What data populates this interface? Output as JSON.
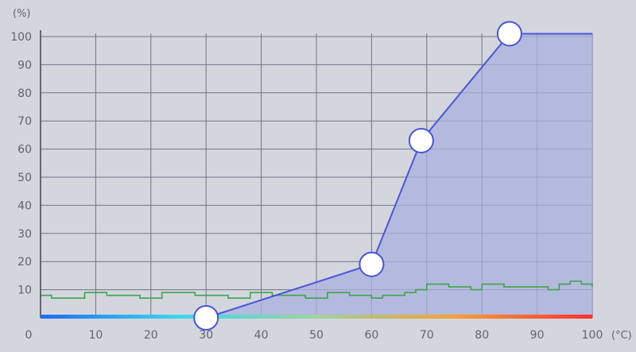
{
  "chart_data": {
    "type": "line",
    "y_unit": "(%)",
    "x_unit": "(°C)",
    "origin_label": "0",
    "xlim": [
      0,
      100
    ],
    "ylim": [
      0,
      100
    ],
    "x_ticks": [
      10,
      20,
      30,
      40,
      50,
      60,
      70,
      80,
      90,
      100
    ],
    "y_ticks": [
      10,
      20,
      30,
      40,
      50,
      60,
      70,
      80,
      90,
      100
    ],
    "grid": true,
    "series": [
      {
        "role": "fan-curve",
        "points": [
          [
            30,
            0
          ],
          [
            60,
            19
          ],
          [
            69,
            63
          ],
          [
            85,
            101
          ],
          [
            100,
            101
          ]
        ],
        "control_points": [
          [
            30,
            0
          ],
          [
            60,
            19
          ],
          [
            69,
            63
          ],
          [
            85,
            101
          ]
        ]
      },
      {
        "role": "fan-speed-history",
        "x": [
          0,
          2,
          4,
          6,
          8,
          10,
          12,
          14,
          16,
          18,
          20,
          22,
          24,
          26,
          28,
          30,
          32,
          34,
          36,
          38,
          40,
          42,
          44,
          46,
          48,
          50,
          52,
          54,
          56,
          58,
          60,
          62,
          64,
          66,
          68,
          70,
          72,
          74,
          76,
          78,
          80,
          82,
          84,
          86,
          88,
          90,
          92,
          94,
          96,
          98,
          100
        ],
        "values": [
          8,
          7,
          7,
          7,
          9,
          9,
          8,
          8,
          8,
          7,
          7,
          9,
          9,
          9,
          8,
          8,
          8,
          7,
          7,
          9,
          9,
          8,
          8,
          8,
          7,
          7,
          9,
          9,
          8,
          8,
          7,
          8,
          8,
          9,
          10,
          12,
          12,
          11,
          11,
          10,
          12,
          12,
          11,
          11,
          11,
          11,
          10,
          12,
          13,
          12,
          11
        ]
      }
    ],
    "colors": {
      "curve": "#4a55dd",
      "fill": "#aab0dc",
      "history": "#3fa34d",
      "grid": "#6e7582",
      "handle_fill": "#ffffff",
      "gradient": [
        "#1e6cf0",
        "#3cd6f0",
        "#9ed2a0",
        "#f5a033",
        "#ff3030"
      ]
    }
  }
}
